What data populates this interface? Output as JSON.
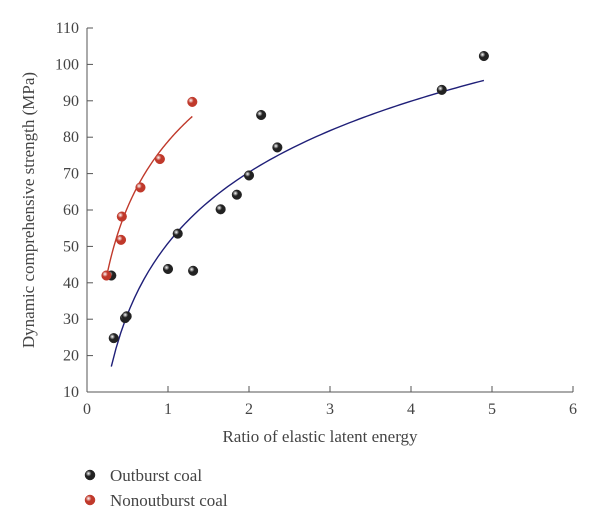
{
  "chart_data": {
    "type": "scatter",
    "title": "",
    "xlabel": "Ratio of elastic latent energy",
    "ylabel": "Dynamic comprehensive strength (MPa)",
    "xlim": [
      0,
      6
    ],
    "ylim": [
      10,
      110
    ],
    "xticks": [
      "0",
      "1",
      "2",
      "3",
      "4",
      "5",
      "6"
    ],
    "yticks": [
      "10",
      "20",
      "30",
      "40",
      "50",
      "60",
      "70",
      "80",
      "90",
      "100",
      "110"
    ],
    "grid": false,
    "legend_position": "bottom-left",
    "series": [
      {
        "name": "Outburst coal",
        "color": "#1f1f78",
        "marker_color": "#222222",
        "points": [
          {
            "x": 0.3,
            "y": 42
          },
          {
            "x": 0.33,
            "y": 24.8
          },
          {
            "x": 0.47,
            "y": 30.3
          },
          {
            "x": 0.49,
            "y": 30.8
          },
          {
            "x": 1.0,
            "y": 43.8
          },
          {
            "x": 1.12,
            "y": 53.5
          },
          {
            "x": 1.31,
            "y": 43.3
          },
          {
            "x": 1.65,
            "y": 60.2
          },
          {
            "x": 1.85,
            "y": 64.2
          },
          {
            "x": 2.0,
            "y": 69.5
          },
          {
            "x": 2.15,
            "y": 86.1
          },
          {
            "x": 2.35,
            "y": 77.2
          },
          {
            "x": 4.38,
            "y": 93.0
          },
          {
            "x": 4.9,
            "y": 102.3
          }
        ],
        "fit": {
          "type": "log",
          "x_range": [
            0.3,
            4.9
          ],
          "y_at_start": 17,
          "y_at_end": 95.6
        }
      },
      {
        "name": "Nonoutburst coal",
        "color": "#c0392b",
        "marker_color": "#c0392b",
        "points": [
          {
            "x": 0.24,
            "y": 42
          },
          {
            "x": 0.42,
            "y": 51.8
          },
          {
            "x": 0.43,
            "y": 58.2
          },
          {
            "x": 0.66,
            "y": 66.2
          },
          {
            "x": 0.9,
            "y": 74
          },
          {
            "x": 1.3,
            "y": 89.7
          }
        ],
        "fit": {
          "type": "log",
          "x_range": [
            0.24,
            1.3
          ],
          "y_at_start": 41.5,
          "y_at_end": 85.7
        }
      }
    ]
  }
}
